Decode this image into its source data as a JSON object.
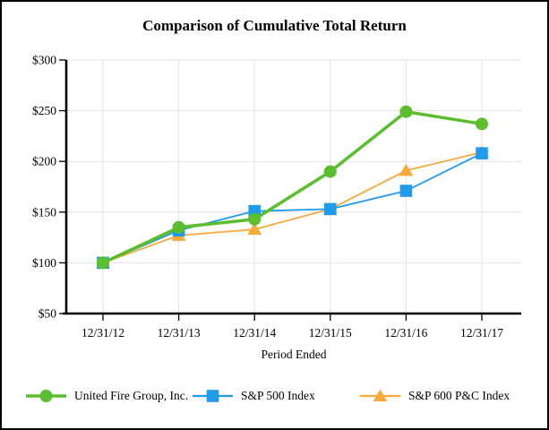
{
  "panel": {
    "background": "#ffffff",
    "border_color": "#000000"
  },
  "chart_data": {
    "type": "line",
    "title": "Comparison of Cumulative Total Return",
    "xlabel": "Period Ended",
    "ylabel": "",
    "categories": [
      "12/31/12",
      "12/31/13",
      "12/31/14",
      "12/31/15",
      "12/31/16",
      "12/31/17"
    ],
    "ylim": [
      50,
      300
    ],
    "y_ticks": {
      "values": [
        50,
        100,
        150,
        200,
        250,
        300
      ],
      "labels": [
        "$50",
        "$100",
        "$150",
        "$200",
        "$250",
        "$300"
      ]
    },
    "grid": true,
    "grid_color": "#e3e3e3",
    "axis_color": "#000000",
    "legend_position": "bottom",
    "series": [
      {
        "name": "United Fire Group, Inc.",
        "marker": "circle",
        "color": "#5abe2d",
        "line_width": 3.5,
        "values": [
          100,
          135,
          143,
          190,
          249,
          237
        ]
      },
      {
        "name": "S&P 500 Index",
        "marker": "square",
        "color": "#1e9beb",
        "line_width": 1.8,
        "values": [
          100,
          132,
          151,
          153,
          171,
          208
        ]
      },
      {
        "name": "S&P 600 P&C Index",
        "marker": "triangle",
        "color": "#f7a93c",
        "line_width": 1.8,
        "values": [
          100,
          127,
          133,
          153,
          191,
          209
        ]
      }
    ]
  }
}
